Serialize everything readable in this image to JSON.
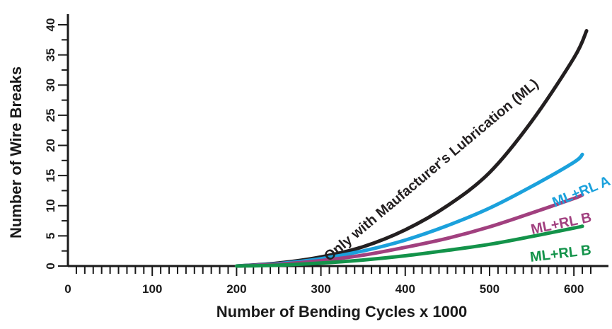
{
  "chart_data": {
    "type": "line",
    "xlabel": "Number of Bending Cycles x 1000",
    "ylabel": "Number of Wire Breaks",
    "xlim": [
      0,
      620
    ],
    "ylim": [
      0,
      40
    ],
    "x_ticks": [
      0,
      100,
      200,
      300,
      400,
      500,
      600
    ],
    "y_ticks": [
      0,
      5,
      10,
      15,
      20,
      25,
      30,
      35,
      40
    ],
    "grid": false,
    "series": [
      {
        "name": "Only with Maufacturer's Lubrication (ML)",
        "color": "#231f20",
        "x": [
          200,
          250,
          300,
          350,
          400,
          450,
          500,
          550,
          600,
          615
        ],
        "y": [
          0,
          0.5,
          1.5,
          3.2,
          6.0,
          10.0,
          15.5,
          24.0,
          34.5,
          39.0
        ]
      },
      {
        "name": "ML+RL A",
        "color": "#1ba1dc",
        "x": [
          200,
          250,
          300,
          350,
          400,
          450,
          500,
          550,
          600,
          610
        ],
        "y": [
          0,
          0.4,
          1.2,
          2.5,
          4.3,
          6.7,
          9.6,
          13.2,
          17.2,
          18.5
        ]
      },
      {
        "name": "ML+RL B",
        "color": "#a1407f",
        "x": [
          200,
          250,
          300,
          350,
          400,
          450,
          500,
          550,
          600,
          610
        ],
        "y": [
          0,
          0.3,
          0.9,
          1.8,
          3.1,
          4.6,
          6.5,
          8.8,
          11.2,
          11.8
        ]
      },
      {
        "name": "ML+RL B",
        "color": "#13934a",
        "x": [
          200,
          250,
          300,
          350,
          400,
          450,
          500,
          550,
          600,
          610
        ],
        "y": [
          0,
          0.15,
          0.5,
          1.0,
          1.7,
          2.6,
          3.6,
          4.9,
          6.3,
          6.6
        ]
      }
    ]
  }
}
